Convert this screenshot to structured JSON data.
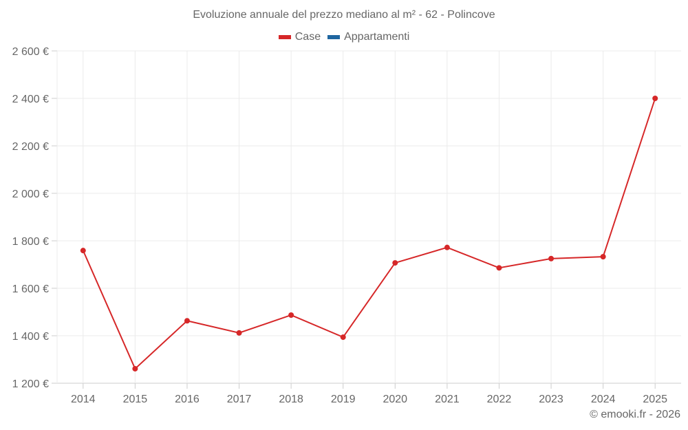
{
  "chart_data": {
    "type": "line",
    "title": "Evoluzione annuale del prezzo mediano al m² - 62 - Polincove",
    "xlabel": "",
    "ylabel": "",
    "categories": [
      "2014",
      "2015",
      "2016",
      "2017",
      "2018",
      "2019",
      "2020",
      "2021",
      "2022",
      "2023",
      "2024",
      "2025"
    ],
    "series": [
      {
        "name": "Case",
        "color": "#d62728",
        "values": [
          1759,
          1261,
          1463,
          1412,
          1487,
          1394,
          1707,
          1772,
          1686,
          1725,
          1733,
          2400
        ]
      },
      {
        "name": "Appartamenti",
        "color": "#1f5f99",
        "values": []
      }
    ],
    "ylim": [
      1200,
      2600
    ],
    "yticks": [
      1200,
      1400,
      1600,
      1800,
      2000,
      2200,
      2400,
      2600
    ],
    "ytick_labels": [
      "1 200 €",
      "1 400 €",
      "1 600 €",
      "1 800 €",
      "2 000 €",
      "2 200 €",
      "2 400 €",
      "2 600 €"
    ],
    "grid": true,
    "legend_position": "top"
  },
  "legend": {
    "items": [
      {
        "label": "Case",
        "color": "#d62728"
      },
      {
        "label": "Appartamenti",
        "color": "#1f66a0"
      }
    ]
  },
  "credit": "© emooki.fr - 2026"
}
